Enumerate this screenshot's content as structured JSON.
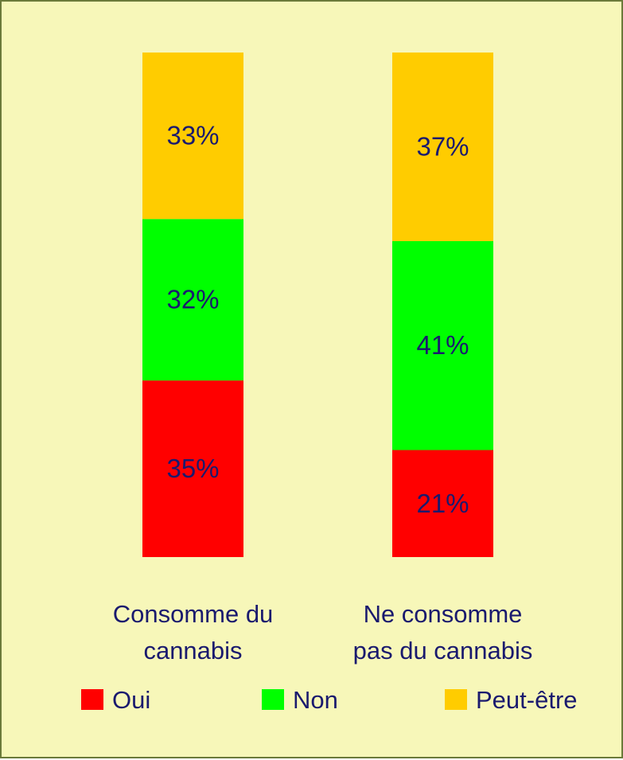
{
  "chart_data": {
    "type": "bar",
    "stacked": true,
    "normalized_percent": true,
    "categories": [
      "Consomme du cannabis",
      "Ne consomme pas du cannabis"
    ],
    "series": [
      {
        "name": "Oui",
        "values": [
          35,
          21
        ],
        "labels": [
          "35%",
          "21%"
        ],
        "color": "#ff0000"
      },
      {
        "name": "Non",
        "values": [
          32,
          41
        ],
        "labels": [
          "32%",
          "41%"
        ],
        "color": "#00ff00"
      },
      {
        "name": "Peut-être",
        "values": [
          33,
          37
        ],
        "labels": [
          "33%",
          "37%"
        ],
        "color": "#ffcc00"
      }
    ],
    "title": "",
    "xlabel": "",
    "ylabel": "",
    "legend_position": "bottom",
    "grid": false,
    "label_color": "#1a1a6e",
    "background": "#f7f7b9"
  }
}
